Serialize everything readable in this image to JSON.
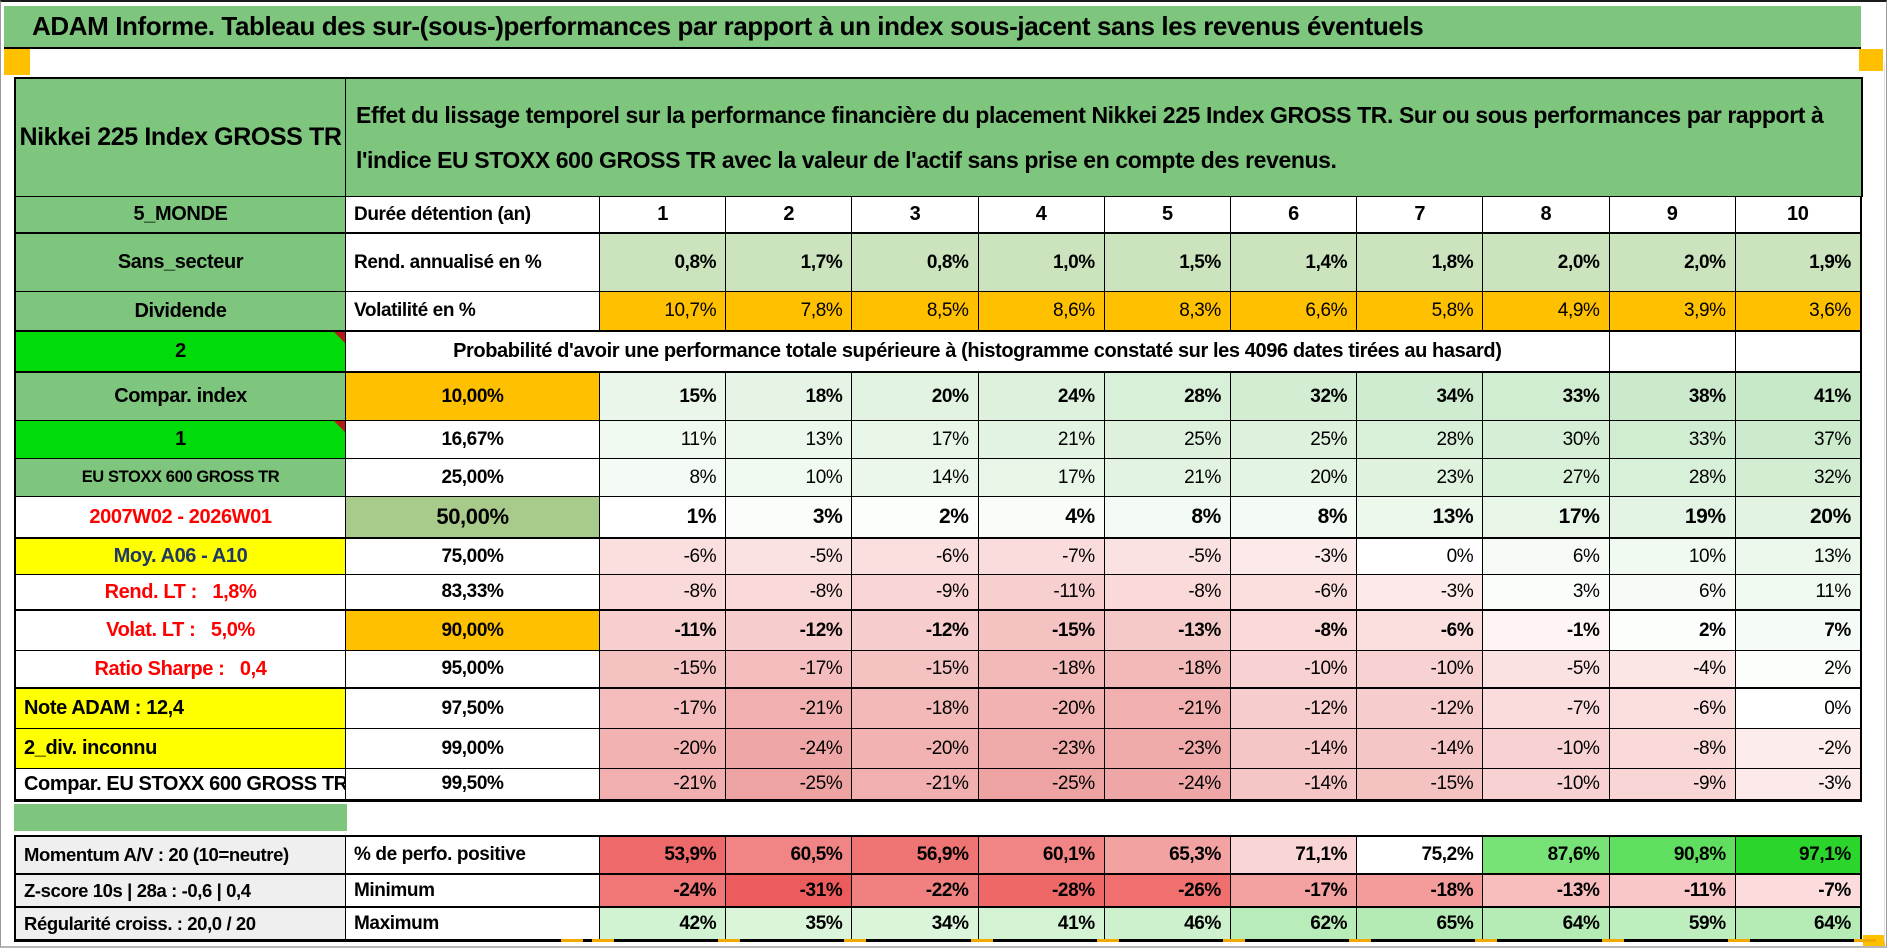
{
  "title": "ADAM Informe. Tableau des sur-(sous-)performances par rapport à un index sous-jacent sans les revenus éventuels",
  "header": {
    "asset": "Nikkei 225 Index GROSS TR",
    "description": "Effet du lissage temporel sur la performance financière du placement Nikkei 225 Index GROSS TR. Sur ou sous performances par rapport à l'indice EU STOXX 600 GROSS TR avec la valeur de l'actif sans prise en compte des revenus."
  },
  "colors": {
    "green": "#7EC57E",
    "bright_green": "#00DC0A",
    "orange": "#FFC000",
    "yellow": "#FFFF00",
    "sage": "#A8CA8A",
    "light_sage": "#CBE4BD",
    "gray_label": "#EFEFEF",
    "red_text": "#FF0000",
    "navy_text": "#1F3864",
    "comment_marker": "#B31B1B"
  },
  "table": {
    "rows": [
      {
        "type": "head",
        "label": {
          "t": "5_MONDE",
          "bg": "#7EC57E"
        },
        "metric": {
          "t": "Durée détention (an)",
          "align": "left"
        },
        "cells": {
          "vals": [
            "1",
            "2",
            "3",
            "4",
            "5",
            "6",
            "7",
            "8",
            "9",
            "10"
          ],
          "bgs": [
            "#FFFFFF",
            "#FFFFFF",
            "#FFFFFF",
            "#FFFFFF",
            "#FFFFFF",
            "#FFFFFF",
            "#FFFFFF",
            "#FFFFFF",
            "#FFFFFF",
            "#FFFFFF"
          ],
          "bold": true,
          "center": true
        }
      },
      {
        "type": "data",
        "label": {
          "t": "Sans_secteur",
          "bg": "#7EC57E"
        },
        "metric": {
          "t": "Rend. annualisé en %",
          "align": "left"
        },
        "cells": {
          "vals": [
            "0,8%",
            "1,7%",
            "0,8%",
            "1,0%",
            "1,5%",
            "1,4%",
            "1,8%",
            "2,0%",
            "2,0%",
            "1,9%"
          ],
          "bgs": [
            "#CBE4BD",
            "#CBE4BD",
            "#CBE4BD",
            "#CBE4BD",
            "#CBE4BD",
            "#CBE4BD",
            "#CBE4BD",
            "#CBE4BD",
            "#CBE4BD",
            "#CBE4BD"
          ],
          "bold": true
        }
      },
      {
        "type": "data",
        "label": {
          "t": "Dividende",
          "bg": "#7EC57E"
        },
        "metric": {
          "t": "Volatilité en %",
          "align": "left"
        },
        "cells": {
          "vals": [
            "10,7%",
            "7,8%",
            "8,5%",
            "8,6%",
            "8,3%",
            "6,6%",
            "5,8%",
            "4,9%",
            "3,9%",
            "3,6%"
          ],
          "bgs": [
            "#FFC000",
            "#FFC000",
            "#FFC000",
            "#FFC000",
            "#FFC000",
            "#FFC000",
            "#FFC000",
            "#FFC000",
            "#FFC000",
            "#FFC000"
          ],
          "bold": false
        }
      },
      {
        "type": "banner",
        "label": {
          "t": "2",
          "bg": "#00DC0A",
          "corner": true
        },
        "text": "Probabilité d'avoir une performance totale supérieure à (histogramme constaté sur les 4096 dates tirées au hasard)",
        "empty_cells": 2
      },
      {
        "type": "data",
        "label": {
          "t": "Compar. index",
          "bg": "#7EC57E"
        },
        "metric": {
          "t": "10,00%",
          "bg": "#FFC000",
          "bold": true
        },
        "cells": {
          "vals": [
            "15%",
            "18%",
            "20%",
            "24%",
            "28%",
            "32%",
            "34%",
            "33%",
            "38%",
            "41%"
          ],
          "bgs": [
            "#EAF6EA",
            "#E5F4E5",
            "#E2F3E2",
            "#DDF1DD",
            "#D8EFD8",
            "#D2EDD2",
            "#D0ECD0",
            "#D1EDD1",
            "#CBEACB",
            "#C7E9C7"
          ],
          "bold": true
        }
      },
      {
        "type": "data",
        "label": {
          "t": "1",
          "bg": "#00DC0A",
          "corner": true
        },
        "metric": {
          "t": "16,67%",
          "bold": true
        },
        "cells": {
          "vals": [
            "11%",
            "13%",
            "17%",
            "21%",
            "25%",
            "25%",
            "28%",
            "30%",
            "33%",
            "37%"
          ],
          "bgs": [
            "#F0F9F0",
            "#EDF8ED",
            "#E8F6E8",
            "#E2F3E2",
            "#DDF1DD",
            "#DDF1DD",
            "#D8EFD8",
            "#D5EED5",
            "#D1EDD1",
            "#CCEBCC"
          ],
          "bold": false
        }
      },
      {
        "type": "data",
        "label": {
          "t": "EU STOXX 600 GROSS TR",
          "bg": "#7EC57E",
          "small": true
        },
        "metric": {
          "t": "25,00%",
          "bold": true
        },
        "cells": {
          "vals": [
            "8%",
            "10%",
            "14%",
            "17%",
            "21%",
            "20%",
            "23%",
            "27%",
            "28%",
            "32%"
          ],
          "bgs": [
            "#F4FBF4",
            "#F1FAF1",
            "#EBF7EB",
            "#E8F6E8",
            "#E2F3E2",
            "#E3F4E3",
            "#DEF2DE",
            "#D9F0D9",
            "#D8EFD8",
            "#D2EDD2"
          ],
          "bold": false
        }
      },
      {
        "type": "data",
        "label": {
          "t": "2007W02 - 2026W01",
          "color": "#FF0000"
        },
        "metric": {
          "t": "50,00%",
          "bg": "#A8CA8A",
          "bold": true,
          "big": true
        },
        "cells": {
          "vals": [
            "1%",
            "3%",
            "2%",
            "4%",
            "8%",
            "8%",
            "13%",
            "17%",
            "19%",
            "20%"
          ],
          "bgs": [
            "#FEFFFE",
            "#FBFDFB",
            "#FCFEFC",
            "#F9FDF9",
            "#F4FBF4",
            "#F4FBF4",
            "#EDF8ED",
            "#E8F6E8",
            "#E4F4E4",
            "#E2F3E2"
          ],
          "bold": true,
          "big": true
        }
      },
      {
        "type": "data",
        "label": {
          "t": "Moy. A06 - A10",
          "bg": "#FFFF00",
          "color": "#1F3864"
        },
        "metric": {
          "t": "75,00%",
          "bold": true
        },
        "cells": {
          "vals": [
            "-6%",
            "-5%",
            "-6%",
            "-7%",
            "-5%",
            "-3%",
            "0%",
            "6%",
            "10%",
            "13%"
          ],
          "bgs": [
            "#FBDFDF",
            "#FBE2E2",
            "#FBDFDF",
            "#FADCDC",
            "#FBE2E2",
            "#FCE9E9",
            "#FFFFFF",
            "#F6FBF6",
            "#F1FAF1",
            "#EDF8ED"
          ],
          "bold": false
        }
      },
      {
        "type": "data",
        "label": {
          "t": "Rend. LT :   1,8%",
          "color": "#FF0000"
        },
        "metric": {
          "t": "83,33%",
          "bold": true
        },
        "cells": {
          "vals": [
            "-8%",
            "-8%",
            "-9%",
            "-11%",
            "-8%",
            "-6%",
            "-3%",
            "3%",
            "6%",
            "11%"
          ],
          "bgs": [
            "#FAD9D9",
            "#FAD9D9",
            "#F9D5D5",
            "#F8CFCF",
            "#FAD9D9",
            "#FBDFDF",
            "#FCE9E9",
            "#FBFDFB",
            "#F6FBF6",
            "#F0F9F0"
          ],
          "bold": false
        }
      },
      {
        "type": "data",
        "label": {
          "t": "Volat. LT :   5,0%",
          "color": "#FF0000"
        },
        "metric": {
          "t": "90,00%",
          "bg": "#FFC000",
          "bold": true
        },
        "cells": {
          "vals": [
            "-11%",
            "-12%",
            "-12%",
            "-15%",
            "-13%",
            "-8%",
            "-6%",
            "-1%",
            "2%",
            "7%"
          ],
          "bgs": [
            "#F8CFCF",
            "#F7CCCC",
            "#F7CCCC",
            "#F5C2C2",
            "#F6C9C9",
            "#FAD9D9",
            "#FBDFDF",
            "#FEF4F4",
            "#FCFEFC",
            "#F5FBF5"
          ],
          "bold": true
        }
      },
      {
        "type": "data",
        "label": {
          "t": "Ratio Sharpe :   0,4",
          "color": "#FF0000"
        },
        "metric": {
          "t": "95,00%",
          "bold": true
        },
        "cells": {
          "vals": [
            "-15%",
            "-17%",
            "-15%",
            "-18%",
            "-18%",
            "-10%",
            "-10%",
            "-5%",
            "-4%",
            "2%"
          ],
          "bgs": [
            "#F5C2C2",
            "#F4BCBC",
            "#F5C2C2",
            "#F3B9B9",
            "#F3B9B9",
            "#F8D2D2",
            "#F8D2D2",
            "#FBE2E2",
            "#FCE5E5",
            "#FCFEFC"
          ],
          "bold": false
        }
      },
      {
        "type": "data",
        "label": {
          "t": "Note ADAM : 12,4",
          "bg": "#FFFF00",
          "align": "left"
        },
        "metric": {
          "t": "97,50%",
          "bold": true
        },
        "cells": {
          "vals": [
            "-17%",
            "-21%",
            "-18%",
            "-20%",
            "-21%",
            "-12%",
            "-12%",
            "-7%",
            "-6%",
            "0%"
          ],
          "bgs": [
            "#F4BCBC",
            "#F1AFAF",
            "#F3B9B9",
            "#F2B2B2",
            "#F1AFAF",
            "#F7CCCC",
            "#F7CCCC",
            "#FADCDC",
            "#FBDFDF",
            "#FFFFFF"
          ],
          "bold": false
        }
      },
      {
        "type": "data",
        "label": {
          "t": "2_div. inconnu",
          "bg": "#FFFF00",
          "align": "left"
        },
        "metric": {
          "t": "99,00%",
          "bold": true
        },
        "cells": {
          "vals": [
            "-20%",
            "-24%",
            "-20%",
            "-23%",
            "-23%",
            "-14%",
            "-14%",
            "-10%",
            "-8%",
            "-2%"
          ],
          "bgs": [
            "#F2B2B2",
            "#EFA6A6",
            "#F2B2B2",
            "#F0A9A9",
            "#F0A9A9",
            "#F6C6C6",
            "#F6C6C6",
            "#F8D2D2",
            "#FAD9D9",
            "#FDECEC"
          ],
          "bold": false
        }
      },
      {
        "type": "data",
        "label": {
          "t": "Compar. EU STOXX 600 GROSS TR",
          "align": "left",
          "clip": true
        },
        "metric": {
          "t": "99,50%",
          "bold": true
        },
        "cells": {
          "vals": [
            "-21%",
            "-25%",
            "-21%",
            "-25%",
            "-24%",
            "-14%",
            "-15%",
            "-10%",
            "-9%",
            "-3%"
          ],
          "bgs": [
            "#F1AFAF",
            "#EEA3A3",
            "#F1AFAF",
            "#EEA3A3",
            "#EFA6A6",
            "#F6C6C6",
            "#F5C2C2",
            "#F8D2D2",
            "#F9D5D5",
            "#FCE9E9"
          ],
          "bold": false
        }
      }
    ]
  },
  "bottom": {
    "rows": [
      {
        "label": {
          "t": "Momentum A/V : 20 (10=neutre)",
          "bg": "#EFEFEF",
          "align": "left"
        },
        "metric": {
          "t": "% de perfo. positive",
          "align": "left"
        },
        "cells": {
          "vals": [
            "53,9%",
            "60,5%",
            "56,9%",
            "60,1%",
            "65,3%",
            "71,1%",
            "75,2%",
            "87,6%",
            "90,8%",
            "97,1%"
          ],
          "bgs": [
            "#EE6A6A",
            "#F18585",
            "#EF7474",
            "#F18585",
            "#F3A2A2",
            "#FAD5D5",
            "#FFFFFF",
            "#77E377",
            "#5FDE5F",
            "#2BD52B"
          ],
          "bold": true
        }
      },
      {
        "label": {
          "t": "Z-score 10s | 28a : -0,6 | 0,4",
          "bg": "#EFEFEF",
          "align": "left"
        },
        "metric": {
          "t": "Minimum",
          "align": "left"
        },
        "cells": {
          "vals": [
            "-24%",
            "-31%",
            "-22%",
            "-28%",
            "-26%",
            "-17%",
            "-18%",
            "-13%",
            "-11%",
            "-7%"
          ],
          "bgs": [
            "#F07777",
            "#ED5C5C",
            "#F18181",
            "#EF6868",
            "#F07070",
            "#F4A1A1",
            "#F49B9B",
            "#F8BDBD",
            "#F9C7C7",
            "#FBDBDB"
          ],
          "bold": true
        }
      },
      {
        "label": {
          "t": "Régularité croiss. : 20,0 / 20",
          "bg": "#EFEFEF",
          "align": "left"
        },
        "metric": {
          "t": "Maximum",
          "align": "left"
        },
        "cells": {
          "vals": [
            "42%",
            "35%",
            "34%",
            "41%",
            "46%",
            "62%",
            "65%",
            "64%",
            "59%",
            "64%"
          ],
          "bgs": [
            "#D2F3D2",
            "#DAF5DA",
            "#DBF5DB",
            "#D3F3D3",
            "#CDF1CD",
            "#B8ECB8",
            "#B4EBB4",
            "#B5EBB5",
            "#BEEDBE",
            "#B5EBB5"
          ],
          "bold": true
        }
      }
    ]
  }
}
